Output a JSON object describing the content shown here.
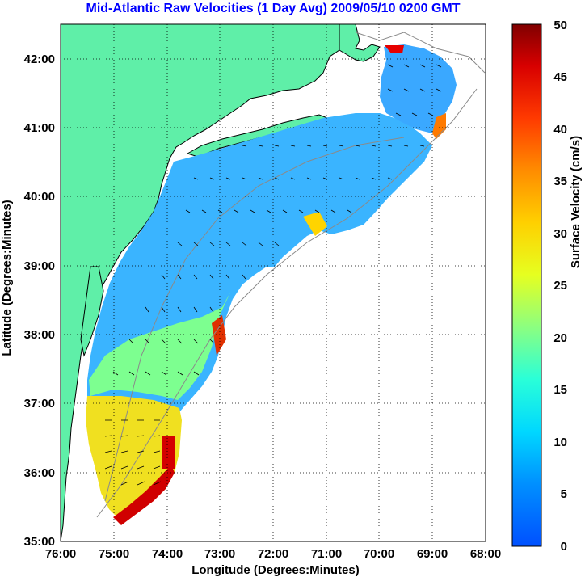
{
  "title": "Mid-Atlantic Raw Velocities (1 Day Avg) 2009/05/10 0200 GMT",
  "xlabel": "Longitude (Degrees:Minutes)",
  "ylabel": "Latitude (Degrees:Minutes)",
  "x_ticks": [
    "76:00",
    "75:00",
    "74:00",
    "73:00",
    "72:00",
    "71:00",
    "70:00",
    "69:00",
    "68:00"
  ],
  "y_ticks": [
    "42:00",
    "41:00",
    "40:00",
    "39:00",
    "38:00",
    "37:00",
    "36:00",
    "35:00"
  ],
  "colorbar": {
    "label": "Surface Velocity (cm/s)",
    "ticks": [
      "50",
      "45",
      "40",
      "35",
      "30",
      "25",
      "20",
      "15",
      "10",
      "5",
      "0"
    ],
    "range": [
      0,
      50
    ]
  },
  "colors": {
    "land": "#5fefa8",
    "ocean": "#ffffff",
    "title": "#0000ff",
    "grid": "#000000"
  },
  "chart_data": {
    "type": "heatmap",
    "x_range_deg": [
      -76,
      -68
    ],
    "y_range_deg": [
      35,
      42.5
    ],
    "grid": true,
    "colorbar_placement": "right"
  }
}
